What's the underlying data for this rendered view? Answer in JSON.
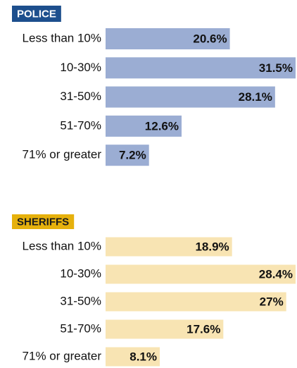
{
  "chart_data": [
    {
      "type": "bar",
      "title": "POLICE",
      "color": "#9badd3",
      "title_color": "#1d4f8d",
      "categories": [
        "Less than 10%",
        "10-30%",
        "31-50%",
        "51-70%",
        "71% or greater"
      ],
      "values": [
        20.6,
        31.5,
        28.1,
        12.6,
        7.2
      ],
      "value_labels": [
        "20.6%",
        "31.5%",
        "28.1%",
        "12.6%",
        "7.2%"
      ]
    },
    {
      "type": "bar",
      "title": "SHERIFFS",
      "color": "#f8e4b3",
      "title_color": "#e6b10c",
      "categories": [
        "Less than 10%",
        "10-30%",
        "31-50%",
        "51-70%",
        "71% or greater"
      ],
      "values": [
        18.9,
        28.4,
        27,
        17.6,
        8.1
      ],
      "value_labels": [
        "18.9%",
        "28.4%",
        "27%",
        "17.6%",
        "8.1%"
      ]
    }
  ]
}
